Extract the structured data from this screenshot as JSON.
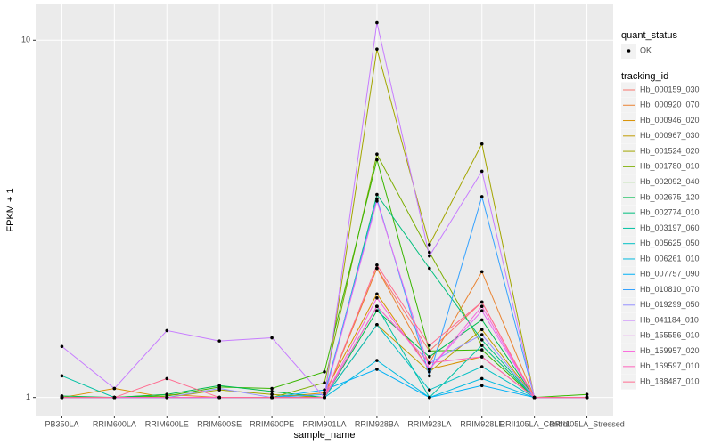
{
  "chart_data": {
    "type": "line",
    "x_label": "sample_name",
    "y_label": "FPKM + 1",
    "categories": [
      "PB350LA",
      "RRIM600LA",
      "RRIM600LE",
      "RRIM600SE",
      "RRIM600PE",
      "RRIM901LA",
      "RRIM928BA",
      "RRIM928LA",
      "RRIM928LE",
      "RRII105LA_Control",
      "RRII105LA_Stressed"
    ],
    "log_y": true,
    "ylim": [
      0.89,
      12.6
    ],
    "yticks": [
      1,
      10
    ],
    "grid": true,
    "legend_position": "right",
    "point_legend_title": "quant_status",
    "point_legend": [
      "OK"
    ],
    "legend_title": "tracking_id",
    "series": [
      {
        "name": "Hb_000159_030",
        "color": "#F8766D",
        "values": [
          1,
          1,
          1,
          1,
          1,
          1,
          2.3,
          1.35,
          1.85,
          1,
          1
        ]
      },
      {
        "name": "Hb_000920_070",
        "color": "#EA8331",
        "values": [
          1,
          1,
          1.02,
          1,
          1,
          1,
          2.3,
          1.25,
          2.25,
          1,
          1
        ]
      },
      {
        "name": "Hb_000946_020",
        "color": "#D89000",
        "values": [
          1,
          1.06,
          1,
          1,
          1,
          1.03,
          1.95,
          1.2,
          1.3,
          1,
          1
        ]
      },
      {
        "name": "Hb_000967_030",
        "color": "#C09B00",
        "values": [
          1,
          1,
          1,
          1,
          1,
          1,
          1.6,
          1.18,
          1.55,
          1,
          1
        ]
      },
      {
        "name": "Hb_001524_020",
        "color": "#A3A500",
        "values": [
          1,
          1,
          1,
          1.05,
          1.02,
          1,
          9.45,
          2.68,
          5.13,
          1,
          1
        ]
      },
      {
        "name": "Hb_001780_010",
        "color": "#7CAE00",
        "values": [
          1,
          1,
          1,
          1,
          1,
          1.1,
          4.8,
          2.55,
          1.4,
          1,
          1
        ]
      },
      {
        "name": "Hb_002092_040",
        "color": "#39B600",
        "values": [
          1,
          1,
          1.01,
          1.07,
          1.06,
          1.18,
          4.63,
          1.35,
          1.36,
          1,
          1.02
        ]
      },
      {
        "name": "Hb_002675_120",
        "color": "#00BB4E",
        "values": [
          1.01,
          1,
          1.02,
          1.08,
          1.04,
          1,
          1.75,
          1.3,
          1.65,
          1,
          1
        ]
      },
      {
        "name": "Hb_002774_010",
        "color": "#00BF7D",
        "values": [
          1,
          1,
          1,
          1,
          1,
          1,
          3.7,
          2.3,
          1.45,
          1,
          1
        ]
      },
      {
        "name": "Hb_003197_060",
        "color": "#00C1A3",
        "values": [
          1.15,
          1,
          1,
          1,
          1,
          1,
          1.8,
          1,
          1.4,
          1,
          1
        ]
      },
      {
        "name": "Hb_005625_050",
        "color": "#00BFC4",
        "values": [
          1,
          1,
          1,
          1,
          1,
          1,
          1.6,
          1.05,
          1.22,
          1,
          1
        ]
      },
      {
        "name": "Hb_006261_010",
        "color": "#00BAE0",
        "values": [
          1,
          1,
          1,
          1,
          1,
          1,
          1.27,
          1,
          1.13,
          1,
          1
        ]
      },
      {
        "name": "Hb_007757_090",
        "color": "#00B0F6",
        "values": [
          1,
          1,
          1,
          1,
          1,
          1.05,
          1.2,
          1,
          1.08,
          1,
          1
        ]
      },
      {
        "name": "Hb_010810_070",
        "color": "#35A2FF",
        "values": [
          1,
          1,
          1,
          1,
          1,
          1.02,
          3.6,
          1.15,
          3.65,
          1,
          1
        ]
      },
      {
        "name": "Hb_019299_050",
        "color": "#9590FF",
        "values": [
          1,
          1,
          1,
          1.06,
          1,
          1,
          1.8,
          1.25,
          1.5,
          1,
          1
        ]
      },
      {
        "name": "Hb_041184_010",
        "color": "#C77CFF",
        "values": [
          1.39,
          1.06,
          1.54,
          1.44,
          1.47,
          1,
          11.2,
          2.49,
          4.3,
          1,
          1
        ]
      },
      {
        "name": "Hb_155556_010",
        "color": "#E76BF3",
        "values": [
          1,
          1,
          1,
          1,
          1,
          1,
          3.55,
          1.2,
          1.75,
          1,
          1
        ]
      },
      {
        "name": "Hb_159957_020",
        "color": "#FA62DB",
        "values": [
          1,
          1,
          1,
          1,
          1,
          1,
          1.9,
          1.2,
          1.8,
          1,
          1
        ]
      },
      {
        "name": "Hb_169597_010",
        "color": "#FF62BC",
        "values": [
          1,
          1,
          1,
          1,
          1,
          1,
          1.8,
          1.25,
          1.3,
          1,
          1
        ]
      },
      {
        "name": "Hb_188487_010",
        "color": "#FF6C91",
        "values": [
          1,
          1,
          1.13,
          1,
          1,
          1,
          2.35,
          1.4,
          1.85,
          1,
          1
        ]
      }
    ]
  }
}
